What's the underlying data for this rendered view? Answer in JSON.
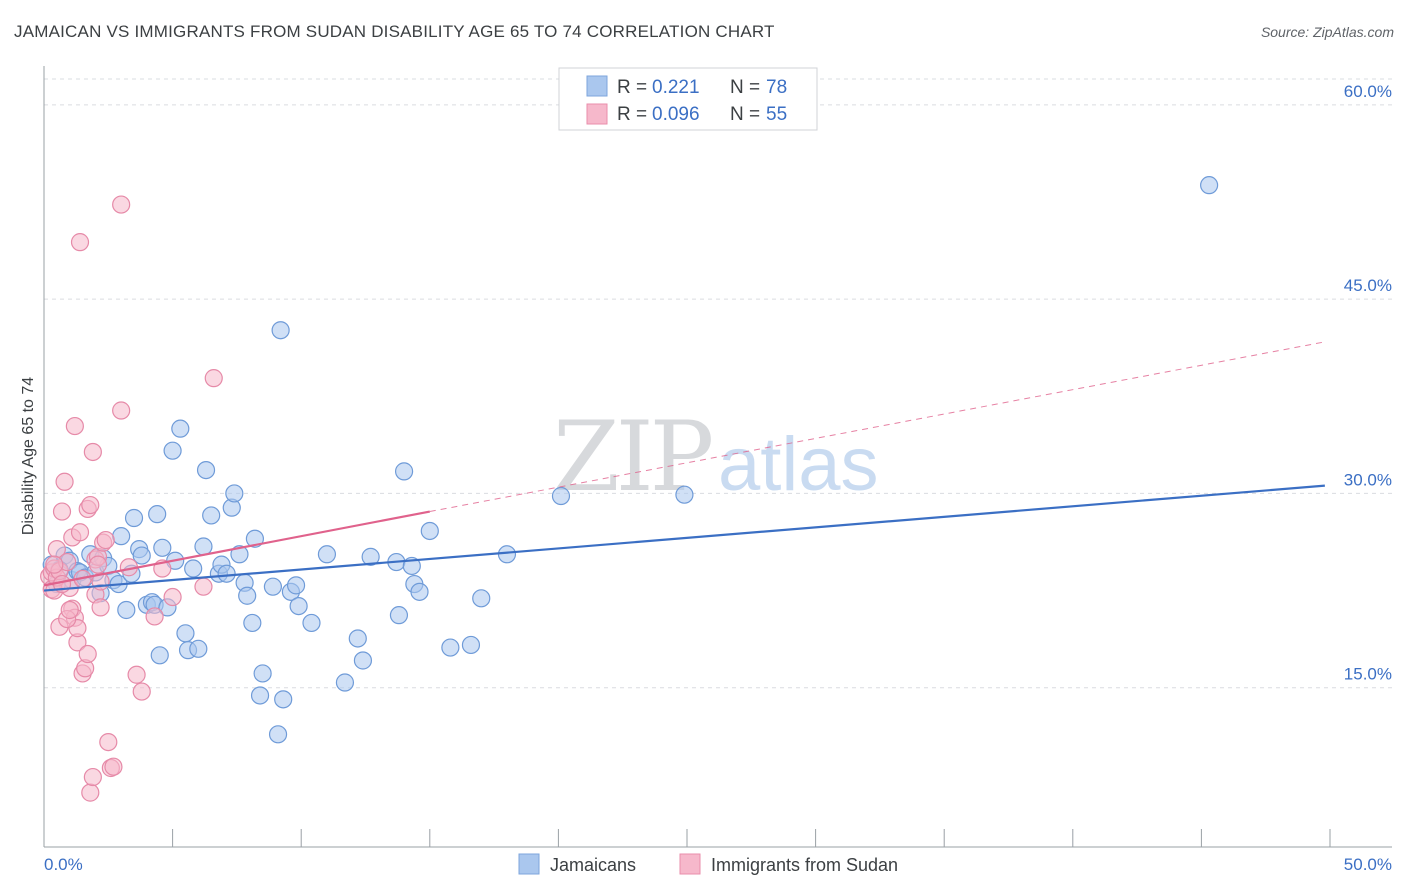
{
  "title": "JAMAICAN VS IMMIGRANTS FROM SUDAN DISABILITY AGE 65 TO 74 CORRELATION CHART",
  "source": "Source: ZipAtlas.com",
  "watermark": {
    "zip": "ZIP",
    "atlas": "atlas"
  },
  "colors": {
    "blue": "#3b6fc4",
    "blue_fill": "#aac7ee",
    "pink": "#e0628c",
    "pink_fill": "#f6b8cb",
    "grid": "#dadce0"
  },
  "legend": {
    "rows": [
      {
        "r_label": "R =",
        "r_value": "0.221",
        "n_label": "N =",
        "n_value": "78"
      },
      {
        "r_label": "R =",
        "r_value": "0.096",
        "n_label": "N =",
        "n_value": "55"
      }
    ]
  },
  "bottom_legend": {
    "jamaicans": "Jamaicans",
    "sudan": "Immigrants from Sudan"
  },
  "chart_data": {
    "type": "scatter",
    "title": "JAMAICAN VS IMMIGRANTS FROM SUDAN DISABILITY AGE 65 TO 74 CORRELATION CHART",
    "xlabel": "",
    "ylabel": "Disability Age 65 to 74",
    "xlim": [
      0,
      50
    ],
    "ylim": [
      2.7,
      63.0
    ],
    "x_tick_labels": [
      "0.0%",
      "50.0%"
    ],
    "y_ticks": [
      15,
      30,
      45,
      60
    ],
    "y_tick_labels": [
      "15.0%",
      "30.0%",
      "45.0%",
      "60.0%"
    ],
    "grid": true,
    "series": [
      {
        "name": "Jamaicans",
        "r": 0.221,
        "n": 78,
        "trend": {
          "x": [
            0,
            49.8
          ],
          "y": [
            22.5,
            30.6
          ],
          "style": "solid"
        },
        "points": [
          [
            0.3,
            24.5
          ],
          [
            0.5,
            23.0
          ],
          [
            0.8,
            25.2
          ],
          [
            1.0,
            24.8
          ],
          [
            1.1,
            23.3
          ],
          [
            1.3,
            24.0
          ],
          [
            1.4,
            23.9
          ],
          [
            1.6,
            23.5
          ],
          [
            1.8,
            25.3
          ],
          [
            2.0,
            23.9
          ],
          [
            2.2,
            22.3
          ],
          [
            2.3,
            25.0
          ],
          [
            2.5,
            24.4
          ],
          [
            2.7,
            23.3
          ],
          [
            2.9,
            23.0
          ],
          [
            3.0,
            26.7
          ],
          [
            3.2,
            21.0
          ],
          [
            3.4,
            23.8
          ],
          [
            3.5,
            28.1
          ],
          [
            3.7,
            25.7
          ],
          [
            3.8,
            25.2
          ],
          [
            4.0,
            21.4
          ],
          [
            4.2,
            21.6
          ],
          [
            4.3,
            21.4
          ],
          [
            4.4,
            28.4
          ],
          [
            4.5,
            17.5
          ],
          [
            4.6,
            25.8
          ],
          [
            4.8,
            21.2
          ],
          [
            5.0,
            33.3
          ],
          [
            5.1,
            24.8
          ],
          [
            5.3,
            35.0
          ],
          [
            5.5,
            19.2
          ],
          [
            5.6,
            17.9
          ],
          [
            5.8,
            24.2
          ],
          [
            6.0,
            18.0
          ],
          [
            6.2,
            25.9
          ],
          [
            6.3,
            31.8
          ],
          [
            6.5,
            28.3
          ],
          [
            6.8,
            23.8
          ],
          [
            6.9,
            24.5
          ],
          [
            7.1,
            23.8
          ],
          [
            7.3,
            28.9
          ],
          [
            7.4,
            30.0
          ],
          [
            7.6,
            25.3
          ],
          [
            7.8,
            23.1
          ],
          [
            7.9,
            22.1
          ],
          [
            8.1,
            20.0
          ],
          [
            8.2,
            26.5
          ],
          [
            8.4,
            14.4
          ],
          [
            8.5,
            16.1
          ],
          [
            8.9,
            22.8
          ],
          [
            9.1,
            11.4
          ],
          [
            9.2,
            42.6
          ],
          [
            9.3,
            14.1
          ],
          [
            9.6,
            22.4
          ],
          [
            9.8,
            22.9
          ],
          [
            9.9,
            21.3
          ],
          [
            10.4,
            20.0
          ],
          [
            11.0,
            25.3
          ],
          [
            11.7,
            15.4
          ],
          [
            12.2,
            18.8
          ],
          [
            12.4,
            17.1
          ],
          [
            12.7,
            25.1
          ],
          [
            13.7,
            24.7
          ],
          [
            13.8,
            20.6
          ],
          [
            14.0,
            31.7
          ],
          [
            14.3,
            24.4
          ],
          [
            14.4,
            23.0
          ],
          [
            14.6,
            22.4
          ],
          [
            15.0,
            27.1
          ],
          [
            15.8,
            18.1
          ],
          [
            16.6,
            18.3
          ],
          [
            17.0,
            21.9
          ],
          [
            18.0,
            25.3
          ],
          [
            20.1,
            29.8
          ],
          [
            24.9,
            29.9
          ],
          [
            45.3,
            53.8
          ],
          [
            0.6,
            24.1
          ]
        ]
      },
      {
        "name": "Immigrants from Sudan",
        "r": 0.096,
        "n": 55,
        "trend": {
          "x": [
            0,
            15
          ],
          "y": [
            22.9,
            28.6
          ],
          "style": "solid",
          "extension": {
            "x": [
              15,
              49.8
            ],
            "y": [
              28.6,
              41.7
            ],
            "style": "dashed"
          }
        },
        "points": [
          [
            0.2,
            23.6
          ],
          [
            0.3,
            23.9
          ],
          [
            0.3,
            22.6
          ],
          [
            0.4,
            22.5
          ],
          [
            0.4,
            24.2
          ],
          [
            0.5,
            23.5
          ],
          [
            0.5,
            25.7
          ],
          [
            0.6,
            24.0
          ],
          [
            0.7,
            28.6
          ],
          [
            0.8,
            30.9
          ],
          [
            0.9,
            24.7
          ],
          [
            1.0,
            22.7
          ],
          [
            1.1,
            26.6
          ],
          [
            1.1,
            21.1
          ],
          [
            1.2,
            20.4
          ],
          [
            1.2,
            35.2
          ],
          [
            1.3,
            18.5
          ],
          [
            1.3,
            19.6
          ],
          [
            1.4,
            27.0
          ],
          [
            1.4,
            49.4
          ],
          [
            1.5,
            16.1
          ],
          [
            1.6,
            16.5
          ],
          [
            1.7,
            28.8
          ],
          [
            1.7,
            17.6
          ],
          [
            1.8,
            29.1
          ],
          [
            1.8,
            6.9
          ],
          [
            1.9,
            8.1
          ],
          [
            1.9,
            33.2
          ],
          [
            2.0,
            24.9
          ],
          [
            2.0,
            22.2
          ],
          [
            2.1,
            25.1
          ],
          [
            2.1,
            24.5
          ],
          [
            2.2,
            23.2
          ],
          [
            2.2,
            21.2
          ],
          [
            2.3,
            26.2
          ],
          [
            2.4,
            26.4
          ],
          [
            2.5,
            10.8
          ],
          [
            2.6,
            8.8
          ],
          [
            2.7,
            8.9
          ],
          [
            3.0,
            36.4
          ],
          [
            3.0,
            52.3
          ],
          [
            3.3,
            24.3
          ],
          [
            3.6,
            16.0
          ],
          [
            3.8,
            14.7
          ],
          [
            4.3,
            20.5
          ],
          [
            4.6,
            24.2
          ],
          [
            5.0,
            22.0
          ],
          [
            6.2,
            22.8
          ],
          [
            6.6,
            38.9
          ],
          [
            0.6,
            19.7
          ],
          [
            0.9,
            20.3
          ],
          [
            1.0,
            21.0
          ],
          [
            0.4,
            24.5
          ],
          [
            0.7,
            23.0
          ],
          [
            1.5,
            23.4
          ]
        ]
      }
    ]
  }
}
